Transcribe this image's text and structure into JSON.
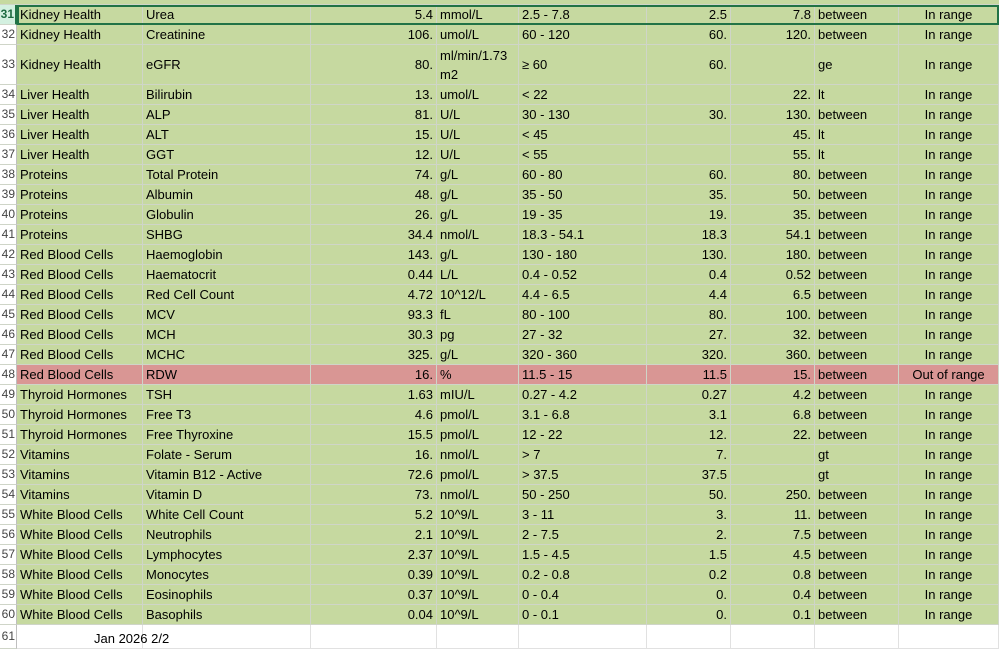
{
  "sheet": {
    "rows": [
      {
        "rownum": "31",
        "category": "Kidney Health",
        "test": "Urea",
        "value": "5.4",
        "unit": "mmol/L",
        "range": "2.5 - 7.8",
        "low": "2.5",
        "high": "7.8",
        "op": "between",
        "status": "In range",
        "state": "ok"
      },
      {
        "rownum": "32",
        "category": "Kidney Health",
        "test": "Creatinine",
        "value": "106.",
        "unit": "umol/L",
        "range": "60 - 120",
        "low": "60.",
        "high": "120.",
        "op": "between",
        "status": "In range",
        "state": "ok"
      },
      {
        "rownum": "33",
        "category": "Kidney Health",
        "test": "eGFR",
        "value": "80.",
        "unit": "ml/min/1.73 m2",
        "range": "≥ 60",
        "low": "60.",
        "high": "",
        "op": "ge",
        "status": "In range",
        "state": "ok"
      },
      {
        "rownum": "34",
        "category": "Liver Health",
        "test": "Bilirubin",
        "value": "13.",
        "unit": "umol/L",
        "range": "< 22",
        "low": "",
        "high": "22.",
        "op": "lt",
        "status": "In range",
        "state": "ok"
      },
      {
        "rownum": "35",
        "category": "Liver Health",
        "test": "ALP",
        "value": "81.",
        "unit": "U/L",
        "range": "30 - 130",
        "low": "30.",
        "high": "130.",
        "op": "between",
        "status": "In range",
        "state": "ok"
      },
      {
        "rownum": "36",
        "category": "Liver Health",
        "test": "ALT",
        "value": "15.",
        "unit": "U/L",
        "range": "< 45",
        "low": "",
        "high": "45.",
        "op": "lt",
        "status": "In range",
        "state": "ok"
      },
      {
        "rownum": "37",
        "category": "Liver Health",
        "test": "GGT",
        "value": "12.",
        "unit": "U/L",
        "range": "< 55",
        "low": "",
        "high": "55.",
        "op": "lt",
        "status": "In range",
        "state": "ok"
      },
      {
        "rownum": "38",
        "category": "Proteins",
        "test": "Total Protein",
        "value": "74.",
        "unit": "g/L",
        "range": "60 - 80",
        "low": "60.",
        "high": "80.",
        "op": "between",
        "status": "In range",
        "state": "ok"
      },
      {
        "rownum": "39",
        "category": "Proteins",
        "test": "Albumin",
        "value": "48.",
        "unit": "g/L",
        "range": "35 - 50",
        "low": "35.",
        "high": "50.",
        "op": "between",
        "status": "In range",
        "state": "ok"
      },
      {
        "rownum": "40",
        "category": "Proteins",
        "test": "Globulin",
        "value": "26.",
        "unit": "g/L",
        "range": "19 - 35",
        "low": "19.",
        "high": "35.",
        "op": "between",
        "status": "In range",
        "state": "ok"
      },
      {
        "rownum": "41",
        "category": "Proteins",
        "test": "SHBG",
        "value": "34.4",
        "unit": "nmol/L",
        "range": "18.3 - 54.1",
        "low": "18.3",
        "high": "54.1",
        "op": "between",
        "status": "In range",
        "state": "ok"
      },
      {
        "rownum": "42",
        "category": "Red Blood Cells",
        "test": "Haemoglobin",
        "value": "143.",
        "unit": "g/L",
        "range": "130 - 180",
        "low": "130.",
        "high": "180.",
        "op": "between",
        "status": "In range",
        "state": "ok"
      },
      {
        "rownum": "43",
        "category": "Red Blood Cells",
        "test": "Haematocrit",
        "value": "0.44",
        "unit": "L/L",
        "range": "0.4 - 0.52",
        "low": "0.4",
        "high": "0.52",
        "op": "between",
        "status": "In range",
        "state": "ok"
      },
      {
        "rownum": "44",
        "category": "Red Blood Cells",
        "test": "Red Cell Count",
        "value": "4.72",
        "unit": "10^12/L",
        "range": "4.4 - 6.5",
        "low": "4.4",
        "high": "6.5",
        "op": "between",
        "status": "In range",
        "state": "ok"
      },
      {
        "rownum": "45",
        "category": "Red Blood Cells",
        "test": "MCV",
        "value": "93.3",
        "unit": "fL",
        "range": "80 - 100",
        "low": "80.",
        "high": "100.",
        "op": "between",
        "status": "In range",
        "state": "ok"
      },
      {
        "rownum": "46",
        "category": "Red Blood Cells",
        "test": "MCH",
        "value": "30.3",
        "unit": "pg",
        "range": "27 - 32",
        "low": "27.",
        "high": "32.",
        "op": "between",
        "status": "In range",
        "state": "ok"
      },
      {
        "rownum": "47",
        "category": "Red Blood Cells",
        "test": "MCHC",
        "value": "325.",
        "unit": "g/L",
        "range": "320 - 360",
        "low": "320.",
        "high": "360.",
        "op": "between",
        "status": "In range",
        "state": "ok"
      },
      {
        "rownum": "48",
        "category": "Red Blood Cells",
        "test": "RDW",
        "value": "16.",
        "unit": "%",
        "range": "11.5 - 15",
        "low": "11.5",
        "high": "15.",
        "op": "between",
        "status": "Out of range",
        "state": "bad"
      },
      {
        "rownum": "49",
        "category": "Thyroid Hormones",
        "test": "TSH",
        "value": "1.63",
        "unit": "mIU/L",
        "range": "0.27 - 4.2",
        "low": "0.27",
        "high": "4.2",
        "op": "between",
        "status": "In range",
        "state": "ok"
      },
      {
        "rownum": "50",
        "category": "Thyroid Hormones",
        "test": "Free T3",
        "value": "4.6",
        "unit": "pmol/L",
        "range": "3.1 - 6.8",
        "low": "3.1",
        "high": "6.8",
        "op": "between",
        "status": "In range",
        "state": "ok"
      },
      {
        "rownum": "51",
        "category": "Thyroid Hormones",
        "test": "Free Thyroxine",
        "value": "15.5",
        "unit": "pmol/L",
        "range": "12 - 22",
        "low": "12.",
        "high": "22.",
        "op": "between",
        "status": "In range",
        "state": "ok"
      },
      {
        "rownum": "52",
        "category": "Vitamins",
        "test": "Folate - Serum",
        "value": "16.",
        "unit": "nmol/L",
        "range": "> 7",
        "low": "7.",
        "high": "",
        "op": "gt",
        "status": "In range",
        "state": "ok"
      },
      {
        "rownum": "53",
        "category": "Vitamins",
        "test": "Vitamin B12 - Active",
        "value": "72.6",
        "unit": "pmol/L",
        "range": "> 37.5",
        "low": "37.5",
        "high": "",
        "op": "gt",
        "status": "In range",
        "state": "ok"
      },
      {
        "rownum": "54",
        "category": "Vitamins",
        "test": "Vitamin D",
        "value": "73.",
        "unit": "nmol/L",
        "range": "50 - 250",
        "low": "50.",
        "high": "250.",
        "op": "between",
        "status": "In range",
        "state": "ok"
      },
      {
        "rownum": "55",
        "category": "White Blood Cells",
        "test": "White Cell Count",
        "value": "5.2",
        "unit": "10^9/L",
        "range": "3 - 11",
        "low": "3.",
        "high": "11.",
        "op": "between",
        "status": "In range",
        "state": "ok"
      },
      {
        "rownum": "56",
        "category": "White Blood Cells",
        "test": "Neutrophils",
        "value": "2.1",
        "unit": "10^9/L",
        "range": "2 - 7.5",
        "low": "2.",
        "high": "7.5",
        "op": "between",
        "status": "In range",
        "state": "ok"
      },
      {
        "rownum": "57",
        "category": "White Blood Cells",
        "test": "Lymphocytes",
        "value": "2.37",
        "unit": "10^9/L",
        "range": "1.5 - 4.5",
        "low": "1.5",
        "high": "4.5",
        "op": "between",
        "status": "In range",
        "state": "ok"
      },
      {
        "rownum": "58",
        "category": "White Blood Cells",
        "test": "Monocytes",
        "value": "0.39",
        "unit": "10^9/L",
        "range": "0.2 - 0.8",
        "low": "0.2",
        "high": "0.8",
        "op": "between",
        "status": "In range",
        "state": "ok"
      },
      {
        "rownum": "59",
        "category": "White Blood Cells",
        "test": "Eosinophils",
        "value": "0.37",
        "unit": "10^9/L",
        "range": "0 - 0.4",
        "low": "0.",
        "high": "0.4",
        "op": "between",
        "status": "In range",
        "state": "ok"
      },
      {
        "rownum": "60",
        "category": "White Blood Cells",
        "test": "Basophils",
        "value": "0.04",
        "unit": "10^9/L",
        "range": "0 - 0.1",
        "low": "0.",
        "high": "0.1",
        "op": "between",
        "status": "In range",
        "state": "ok"
      }
    ],
    "last_row": {
      "rownum": "61"
    },
    "footer_text": "Jan 2026 2/2",
    "colors": {
      "in_range_fill": "#c6d9a0",
      "out_of_range_fill": "#d99694",
      "active_cell_border": "#217346"
    }
  }
}
